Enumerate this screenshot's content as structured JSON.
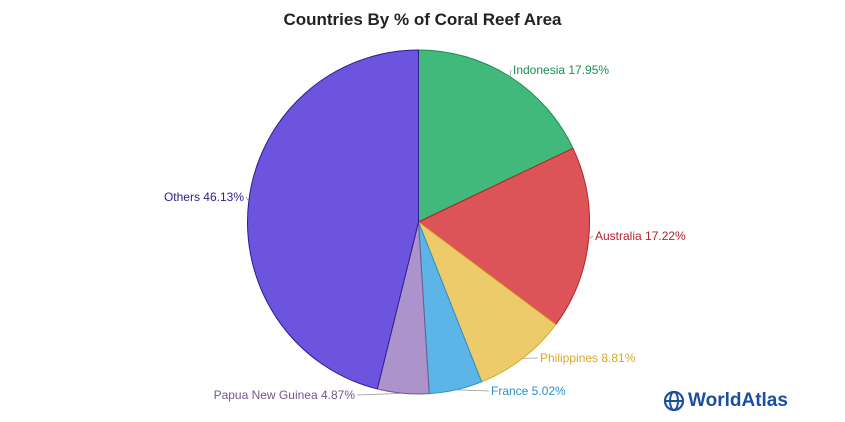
{
  "chart_data": {
    "type": "pie",
    "title": "Countries By % of Coral Reef Area",
    "slices": [
      {
        "label": "Indonesia 17.95%",
        "name": "Indonesia",
        "value": 17.95,
        "color": "#40b97a",
        "label_color": "#1a8f4f"
      },
      {
        "label": "Australia 17.22%",
        "name": "Australia",
        "value": 17.22,
        "color": "#dc5458",
        "label_color": "#b8202a"
      },
      {
        "label": "Philippines 8.81%",
        "name": "Philippines",
        "value": 8.81,
        "color": "#eecb6a",
        "label_color": "#d6a928"
      },
      {
        "label": "France 5.02%",
        "name": "France",
        "value": 5.02,
        "color": "#5db4e6",
        "label_color": "#2c8fcc"
      },
      {
        "label": "Papua New Guinea 4.87%",
        "name": "Papua New Guinea",
        "value": 4.87,
        "color": "#ac93cc",
        "label_color": "#6f5a8a"
      },
      {
        "label": "Others 46.13%",
        "name": "Others",
        "value": 46.13,
        "color": "#6d54de",
        "label_color": "#2c1f8a"
      }
    ]
  },
  "branding": {
    "logo_text": "WorldAtlas",
    "logo_color": "#1d4fa0",
    "logo_icon": "globe-icon"
  }
}
